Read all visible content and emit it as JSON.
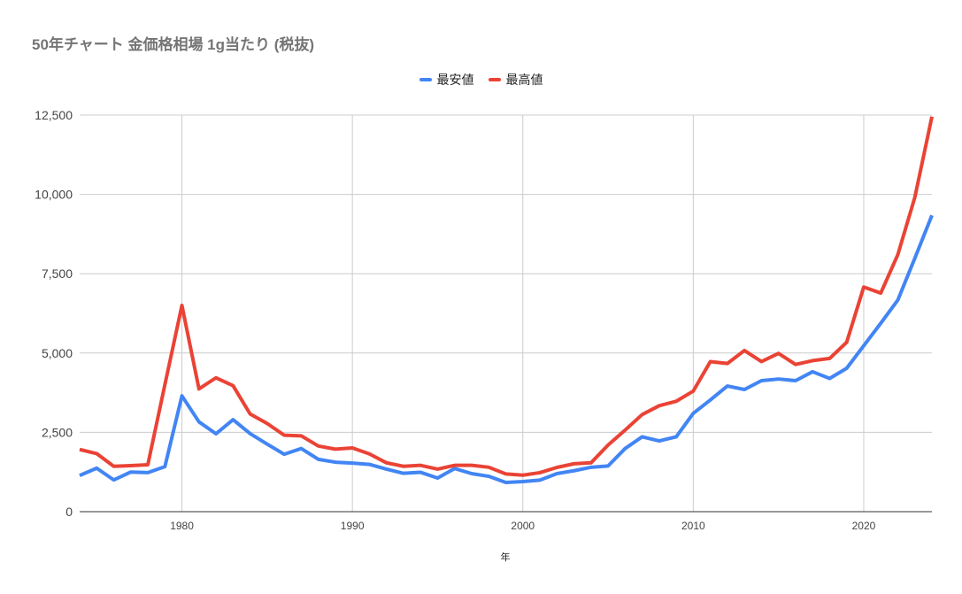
{
  "chart_data": {
    "type": "line",
    "title": "50年チャート 金価格相場 1g当たり (税抜)",
    "xlabel": "年",
    "ylabel": "",
    "xlim": [
      1974,
      2024
    ],
    "ylim": [
      0,
      12500
    ],
    "x_ticks": [
      1980,
      1990,
      2000,
      2010,
      2020
    ],
    "x_tick_labels": [
      "1980",
      "1990",
      "2000",
      "2010",
      "2020"
    ],
    "y_ticks": [
      0,
      2500,
      5000,
      7500,
      10000,
      12500
    ],
    "y_tick_labels": [
      "0",
      "2,500",
      "5,000",
      "7,500",
      "10,000",
      "12,500"
    ],
    "grid": true,
    "legend_position": "top",
    "x": [
      1974,
      1975,
      1976,
      1977,
      1978,
      1979,
      1980,
      1981,
      1982,
      1983,
      1984,
      1985,
      1986,
      1987,
      1988,
      1989,
      1990,
      1991,
      1992,
      1993,
      1994,
      1995,
      1996,
      1997,
      1998,
      1999,
      2000,
      2001,
      2002,
      2003,
      2004,
      2005,
      2006,
      2007,
      2008,
      2009,
      2010,
      2011,
      2012,
      2013,
      2014,
      2015,
      2016,
      2017,
      2018,
      2019,
      2020,
      2021,
      2022,
      2023,
      2024
    ],
    "series": [
      {
        "name": "最安値",
        "color": "#4285F4",
        "values": [
          1140,
          1370,
          1000,
          1250,
          1230,
          1420,
          3650,
          2830,
          2455,
          2900,
          2460,
          2130,
          1810,
          1990,
          1650,
          1560,
          1530,
          1490,
          1340,
          1210,
          1240,
          1060,
          1360,
          1200,
          1115,
          920,
          950,
          995,
          1200,
          1290,
          1400,
          1440,
          1990,
          2360,
          2230,
          2360,
          3100,
          3520,
          3960,
          3850,
          4130,
          4180,
          4130,
          4410,
          4200,
          4520,
          5230,
          5940,
          6670,
          7990,
          9340
        ]
      },
      {
        "name": "最高値",
        "color": "#EA4335",
        "values": [
          1960,
          1830,
          1430,
          1450,
          1480,
          4000,
          6500,
          3870,
          4220,
          3970,
          3080,
          2780,
          2410,
          2390,
          2070,
          1970,
          2010,
          1820,
          1540,
          1430,
          1460,
          1340,
          1460,
          1460,
          1400,
          1190,
          1150,
          1230,
          1395,
          1510,
          1540,
          2100,
          2570,
          3060,
          3340,
          3480,
          3800,
          4730,
          4670,
          5080,
          4730,
          4990,
          4640,
          4760,
          4830,
          5340,
          7080,
          6890,
          8100,
          9910,
          12450
        ]
      }
    ]
  }
}
